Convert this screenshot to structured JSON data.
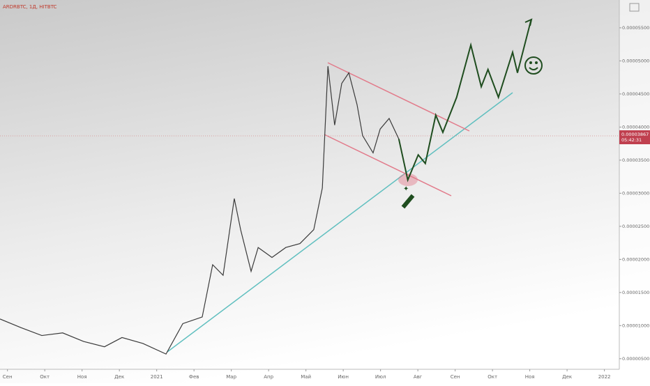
{
  "chart_data": {
    "type": "line",
    "title": "ARDRBTC, 1Д, HITBTC",
    "xlim": [
      -0.2,
      16.4
    ],
    "xticks": [
      {
        "value": 0,
        "label": "Сен"
      },
      {
        "value": 1,
        "label": "Окт"
      },
      {
        "value": 2,
        "label": "Ноя"
      },
      {
        "value": 3,
        "label": "Дек"
      },
      {
        "value": 4,
        "label": "2021"
      },
      {
        "value": 5,
        "label": "Фев"
      },
      {
        "value": 6,
        "label": "Мар"
      },
      {
        "value": 7,
        "label": "Апр"
      },
      {
        "value": 8,
        "label": "Май"
      },
      {
        "value": 9,
        "label": "Июн"
      },
      {
        "value": 10,
        "label": "Июл"
      },
      {
        "value": 11,
        "label": "Авг"
      },
      {
        "value": 12,
        "label": "Сен"
      },
      {
        "value": 13,
        "label": "Окт"
      },
      {
        "value": 14,
        "label": "Ноя"
      },
      {
        "value": 15,
        "label": "Дек"
      },
      {
        "value": 16,
        "label": "2022"
      }
    ],
    "ylim": [
      3.4e-06,
      5.92e-05
    ],
    "yticks": [
      {
        "value": 5e-06,
        "label": "0.00000500"
      },
      {
        "value": 1e-05,
        "label": "0.00001000"
      },
      {
        "value": 1.5e-05,
        "label": "0.00001500"
      },
      {
        "value": 2e-05,
        "label": "0.00002000"
      },
      {
        "value": 2.5e-05,
        "label": "0.00002500"
      },
      {
        "value": 3e-05,
        "label": "0.00003000"
      },
      {
        "value": 3.5e-05,
        "label": "0.00003500"
      },
      {
        "value": 4e-05,
        "label": "0.00004000"
      },
      {
        "value": 4.5e-05,
        "label": "0.00004500"
      },
      {
        "value": 5e-05,
        "label": "0.00005000"
      },
      {
        "value": 5.5e-05,
        "label": "0.00005500"
      }
    ],
    "current_price": {
      "value": 3.867e-05,
      "label": "0.00003867"
    },
    "countdown": "05:42:31",
    "series": [
      {
        "color": "#3a3a3a",
        "x": [
          -0.2,
          0.36,
          0.92,
          1.48,
          2.04,
          2.6,
          3.07,
          3.63,
          4.25,
          4.7,
          5.22,
          5.5,
          5.78,
          6.08,
          6.25,
          6.53,
          6.72,
          7.09,
          7.46,
          7.84,
          8.21,
          8.44,
          8.59,
          8.77,
          8.96,
          9.15,
          9.37,
          9.52,
          9.8,
          9.99,
          10.23,
          10.49
        ],
        "values": [
          1.1e-05,
          9.7e-06,
          8.5e-06,
          8.9e-06,
          7.6e-06,
          6.8e-06,
          8.2e-06,
          7.3e-06,
          5.7e-06,
          1.03e-05,
          1.13e-05,
          1.92e-05,
          1.76e-05,
          2.92e-05,
          2.45e-05,
          1.82e-05,
          2.18e-05,
          2.03e-05,
          2.18e-05,
          2.24e-05,
          2.45e-05,
          3.08e-05,
          4.92e-05,
          4.03e-05,
          4.66e-05,
          4.82e-05,
          4.34e-05,
          3.87e-05,
          3.61e-05,
          3.97e-05,
          4.13e-05,
          3.82e-05
        ]
      },
      {
        "color": "#1f4d1f",
        "x": [
          10.49,
          10.73,
          11.01,
          11.2,
          11.48,
          11.67,
          12.04,
          12.42,
          12.7,
          12.88,
          13.16,
          13.54,
          13.67,
          14.04
        ],
        "values": [
          3.82e-05,
          3.2e-05,
          3.58e-05,
          3.45e-05,
          4.18e-05,
          3.92e-05,
          4.45e-05,
          5.24e-05,
          4.61e-05,
          4.87e-05,
          4.45e-05,
          5.13e-05,
          4.82e-05,
          5.63e-05
        ]
      }
    ]
  }
}
